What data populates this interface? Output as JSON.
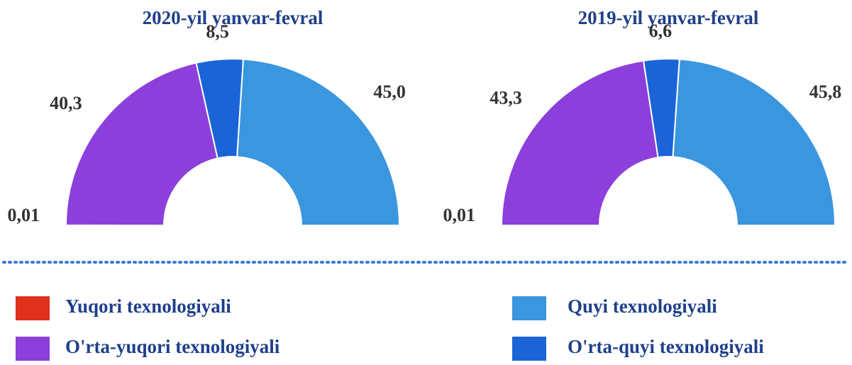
{
  "chart_data": [
    {
      "type": "pie",
      "title": "2020-yil yanvar-fevral",
      "categories": [
        "Yuqori texnologiyali",
        "O'rta-yuqori texnologiyali",
        "O'rta-quyi texnologiyali",
        "Quyi texnologiyali"
      ],
      "values": [
        0.01,
        40.3,
        8.5,
        45.0
      ],
      "value_labels": [
        "0,01",
        "40,3",
        "8,5",
        "45,0"
      ],
      "colors": [
        "#e0311d",
        "#8c3fdb",
        "#1b64d8",
        "#3a96df"
      ]
    },
    {
      "type": "pie",
      "title": "2019-yil yanvar-fevral",
      "categories": [
        "Yuqori texnologiyali",
        "O'rta-yuqori texnologiyali",
        "O'rta-quyi texnologiyali",
        "Quyi texnologiyali"
      ],
      "values": [
        0.01,
        43.3,
        6.6,
        45.8
      ],
      "value_labels": [
        "0,01",
        "43,3",
        "6,6",
        "45,8"
      ],
      "colors": [
        "#e0311d",
        "#8c3fdb",
        "#1b64d8",
        "#3a96df"
      ]
    }
  ]
}
